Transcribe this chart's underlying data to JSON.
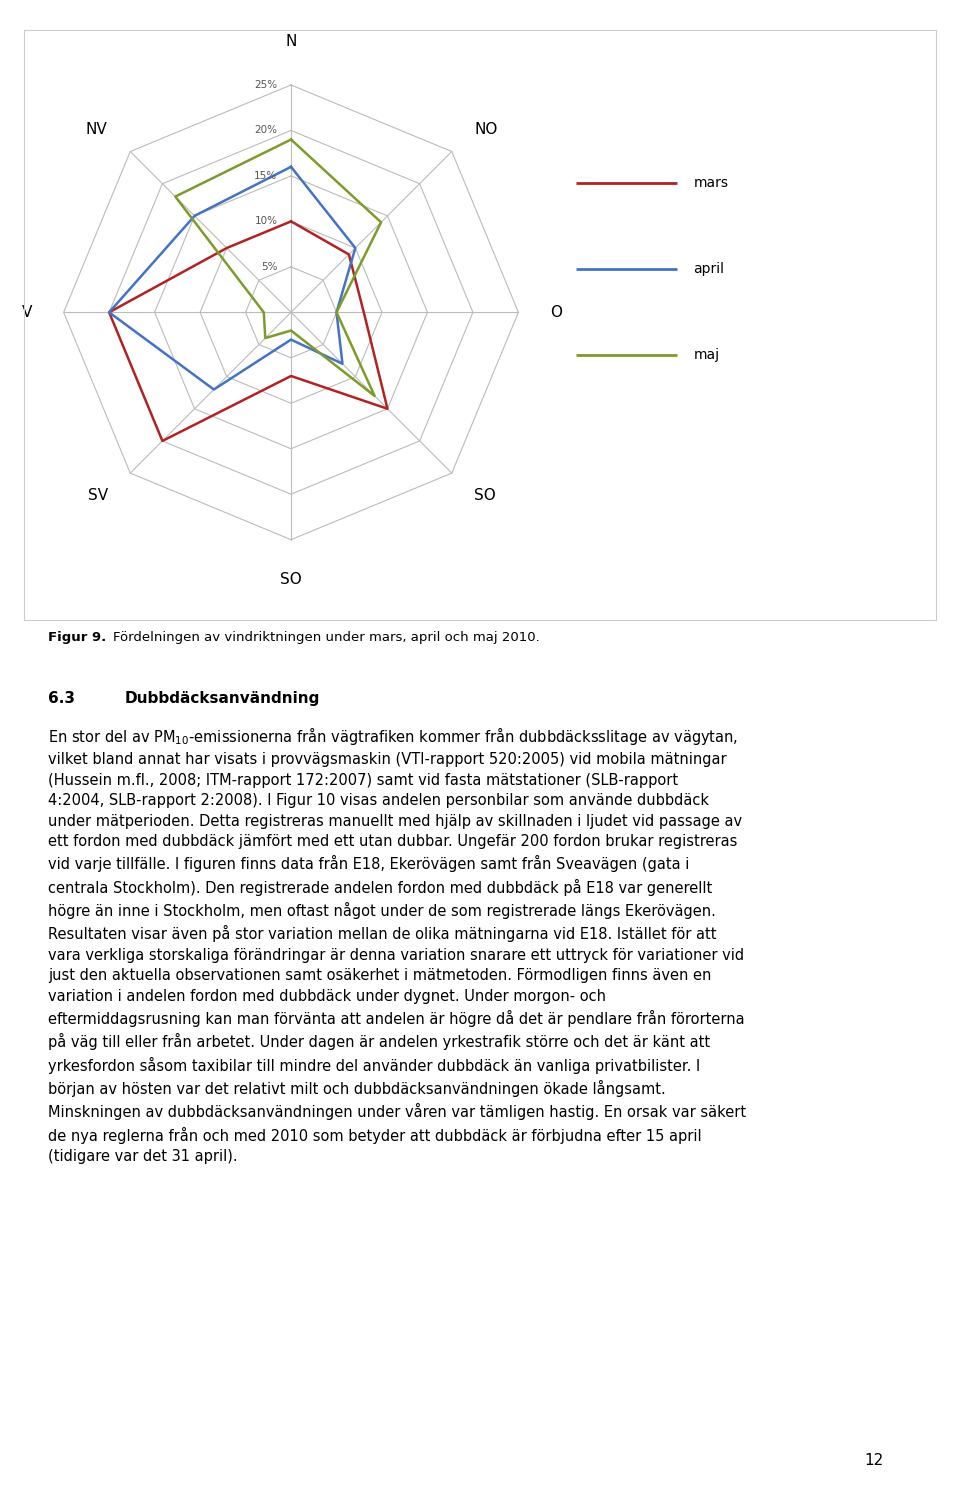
{
  "categories": [
    "N",
    "NO",
    "O",
    "SO",
    "SO",
    "SV",
    "V",
    "NV"
  ],
  "mars": [
    10,
    9,
    8,
    15,
    7,
    20,
    20,
    10
  ],
  "april": [
    16,
    10,
    5,
    8,
    3,
    12,
    20,
    15
  ],
  "maj": [
    19,
    14,
    5,
    13,
    2,
    4,
    3,
    18
  ],
  "max_val": 25,
  "grid_vals": [
    5,
    10,
    15,
    20,
    25
  ],
  "colors": {
    "mars": "#B22222",
    "april": "#4472C4",
    "maj": "#7D9B2A"
  },
  "background_color": "#FFFFFF",
  "grid_color": "#BBBBBB",
  "linewidth": 1.8,
  "figure_caption_bold": "Figur 9.",
  "figure_caption_rest": " Fördelningen av vindriktningen under mars, april och maj 2010.",
  "section_number": "6.3",
  "section_title": "Dubbdäcksanvändning",
  "page_number": "12"
}
